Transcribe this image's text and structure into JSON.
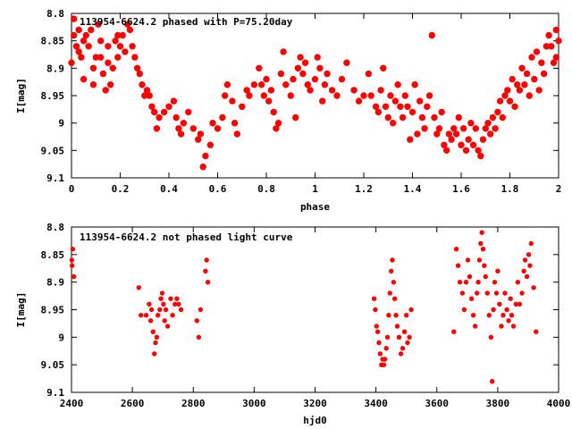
{
  "colors": {
    "points": "#ff0000",
    "axes": "#000000",
    "background": "#ffffff"
  },
  "chart_data": [
    {
      "type": "scatter",
      "title": "113954-6624.2 phased with P=75.20day",
      "xlabel": "phase",
      "ylabel": "I[mag]",
      "xlim": [
        0,
        2
      ],
      "ylim": [
        9.1,
        8.8
      ],
      "y_inverted": true,
      "xticks": [
        "0",
        "0.2",
        "0.4",
        "0.6",
        "0.8",
        "1",
        "1.2",
        "1.4",
        "1.6",
        "1.8",
        "2"
      ],
      "yticks": [
        "8.8",
        "8.85",
        "8.9",
        "8.95",
        "9",
        "9.05",
        "9.1"
      ],
      "marker": "filled-circle-large",
      "points": [
        [
          0.0,
          8.89
        ],
        [
          0.01,
          8.81
        ],
        [
          0.01,
          8.84
        ],
        [
          0.02,
          8.86
        ],
        [
          0.03,
          8.83
        ],
        [
          0.03,
          8.87
        ],
        [
          0.04,
          8.88
        ],
        [
          0.05,
          8.92
        ],
        [
          0.05,
          8.85
        ],
        [
          0.06,
          8.84
        ],
        [
          0.07,
          8.86
        ],
        [
          0.08,
          8.83
        ],
        [
          0.09,
          8.9
        ],
        [
          0.09,
          8.93
        ],
        [
          0.1,
          8.88
        ],
        [
          0.11,
          8.82
        ],
        [
          0.12,
          8.85
        ],
        [
          0.12,
          8.88
        ],
        [
          0.13,
          8.91
        ],
        [
          0.14,
          8.94
        ],
        [
          0.15,
          8.86
        ],
        [
          0.15,
          8.89
        ],
        [
          0.16,
          8.93
        ],
        [
          0.17,
          8.9
        ],
        [
          0.18,
          8.85
        ],
        [
          0.19,
          8.84
        ],
        [
          0.19,
          8.88
        ],
        [
          0.2,
          8.86
        ],
        [
          0.21,
          8.84
        ],
        [
          0.22,
          8.87
        ],
        [
          0.23,
          8.82
        ],
        [
          0.24,
          8.83
        ],
        [
          0.25,
          8.86
        ],
        [
          0.26,
          8.88
        ],
        [
          0.27,
          8.9
        ],
        [
          0.28,
          8.91
        ],
        [
          0.29,
          8.93
        ],
        [
          0.3,
          8.95
        ],
        [
          0.31,
          8.94
        ],
        [
          0.32,
          8.95
        ],
        [
          0.33,
          8.97
        ],
        [
          0.34,
          8.98
        ],
        [
          0.35,
          9.01
        ],
        [
          0.36,
          8.99
        ],
        [
          0.38,
          8.98
        ],
        [
          0.4,
          8.97
        ],
        [
          0.42,
          8.96
        ],
        [
          0.43,
          8.99
        ],
        [
          0.44,
          9.01
        ],
        [
          0.45,
          9.02
        ],
        [
          0.46,
          9.0
        ],
        [
          0.48,
          8.98
        ],
        [
          0.5,
          9.01
        ],
        [
          0.52,
          9.03
        ],
        [
          0.53,
          9.02
        ],
        [
          0.54,
          9.08
        ],
        [
          0.55,
          9.06
        ],
        [
          0.57,
          9.04
        ],
        [
          0.58,
          9.0
        ],
        [
          0.6,
          9.01
        ],
        [
          0.62,
          8.99
        ],
        [
          0.63,
          8.95
        ],
        [
          0.64,
          8.93
        ],
        [
          0.66,
          8.96
        ],
        [
          0.67,
          9.0
        ],
        [
          0.68,
          9.02
        ],
        [
          0.7,
          8.97
        ],
        [
          0.72,
          8.94
        ],
        [
          0.73,
          8.95
        ],
        [
          0.75,
          8.93
        ],
        [
          0.77,
          8.9
        ],
        [
          0.78,
          8.93
        ],
        [
          0.79,
          8.95
        ],
        [
          0.8,
          8.92
        ],
        [
          0.81,
          8.96
        ],
        [
          0.82,
          8.94
        ],
        [
          0.83,
          8.98
        ],
        [
          0.84,
          9.01
        ],
        [
          0.85,
          9.0
        ],
        [
          0.86,
          8.91
        ],
        [
          0.87,
          8.87
        ],
        [
          0.88,
          8.93
        ],
        [
          0.9,
          8.95
        ],
        [
          0.91,
          8.92
        ],
        [
          0.92,
          8.99
        ],
        [
          0.93,
          8.9
        ],
        [
          0.94,
          8.88
        ],
        [
          0.95,
          8.91
        ],
        [
          0.96,
          8.89
        ],
        [
          0.97,
          8.93
        ],
        [
          0.98,
          8.94
        ],
        [
          1.0,
          8.92
        ],
        [
          1.01,
          8.88
        ],
        [
          1.02,
          8.9
        ],
        [
          1.03,
          8.96
        ],
        [
          1.04,
          8.93
        ],
        [
          1.05,
          8.91
        ],
        [
          1.07,
          8.94
        ],
        [
          1.09,
          8.95
        ],
        [
          1.11,
          8.92
        ],
        [
          1.13,
          8.89
        ],
        [
          1.16,
          8.94
        ],
        [
          1.18,
          8.96
        ],
        [
          1.2,
          8.95
        ],
        [
          1.22,
          8.91
        ],
        [
          1.23,
          8.95
        ],
        [
          1.25,
          8.97
        ],
        [
          1.26,
          8.98
        ],
        [
          1.27,
          8.94
        ],
        [
          1.28,
          8.9
        ],
        [
          1.29,
          8.97
        ],
        [
          1.3,
          8.99
        ],
        [
          1.31,
          8.95
        ],
        [
          1.32,
          9.0
        ],
        [
          1.33,
          8.96
        ],
        [
          1.34,
          8.93
        ],
        [
          1.35,
          8.97
        ],
        [
          1.36,
          8.99
        ],
        [
          1.37,
          8.95
        ],
        [
          1.38,
          8.97
        ],
        [
          1.39,
          9.03
        ],
        [
          1.4,
          8.98
        ],
        [
          1.41,
          8.93
        ],
        [
          1.42,
          9.02
        ],
        [
          1.43,
          8.96
        ],
        [
          1.44,
          8.99
        ],
        [
          1.45,
          9.01
        ],
        [
          1.46,
          8.97
        ],
        [
          1.47,
          8.95
        ],
        [
          1.48,
          8.84
        ],
        [
          1.49,
          8.99
        ],
        [
          1.5,
          9.02
        ],
        [
          1.51,
          9.01
        ],
        [
          1.52,
          8.98
        ],
        [
          1.53,
          9.04
        ],
        [
          1.54,
          9.05
        ],
        [
          1.55,
          9.02
        ],
        [
          1.56,
          9.03
        ],
        [
          1.57,
          9.01
        ],
        [
          1.58,
          9.02
        ],
        [
          1.59,
          8.99
        ],
        [
          1.6,
          9.04
        ],
        [
          1.61,
          9.01
        ],
        [
          1.62,
          9.05
        ],
        [
          1.63,
          9.03
        ],
        [
          1.64,
          9.0
        ],
        [
          1.65,
          9.04
        ],
        [
          1.66,
          9.01
        ],
        [
          1.67,
          9.05
        ],
        [
          1.68,
          9.06
        ],
        [
          1.69,
          9.03
        ],
        [
          1.7,
          9.01
        ],
        [
          1.71,
          9.0
        ],
        [
          1.72,
          9.02
        ],
        [
          1.73,
          8.99
        ],
        [
          1.74,
          9.01
        ],
        [
          1.75,
          8.98
        ],
        [
          1.76,
          8.96
        ],
        [
          1.77,
          8.99
        ],
        [
          1.78,
          8.95
        ],
        [
          1.79,
          8.94
        ],
        [
          1.8,
          8.96
        ],
        [
          1.81,
          8.92
        ],
        [
          1.82,
          8.97
        ],
        [
          1.83,
          8.93
        ],
        [
          1.84,
          8.94
        ],
        [
          1.85,
          8.9
        ],
        [
          1.86,
          8.93
        ],
        [
          1.87,
          8.91
        ],
        [
          1.88,
          8.95
        ],
        [
          1.89,
          8.88
        ],
        [
          1.9,
          8.92
        ],
        [
          1.91,
          8.87
        ],
        [
          1.92,
          8.94
        ],
        [
          1.93,
          8.89
        ],
        [
          1.94,
          8.91
        ],
        [
          1.95,
          8.86
        ],
        [
          1.96,
          8.84
        ],
        [
          1.97,
          8.86
        ],
        [
          1.98,
          8.89
        ],
        [
          1.99,
          8.83
        ],
        [
          1.99,
          8.88
        ],
        [
          2.0,
          8.85
        ]
      ]
    },
    {
      "type": "scatter",
      "title": "113954-6624.2 not phased light curve",
      "xlabel": "hjd0",
      "ylabel": "I[mag]",
      "xlim": [
        2400,
        4000
      ],
      "ylim": [
        9.1,
        8.8
      ],
      "y_inverted": true,
      "xticks": [
        "2400",
        "2600",
        "2800",
        "3000",
        "3200",
        "3400",
        "3600",
        "3800",
        "4000"
      ],
      "yticks": [
        "8.8",
        "8.85",
        "8.9",
        "8.95",
        "9",
        "9.05",
        "9.1"
      ],
      "marker": "filled-circle-small",
      "points": [
        [
          2401,
          8.86
        ],
        [
          2402,
          8.87
        ],
        [
          2404,
          8.84
        ],
        [
          2408,
          8.89
        ],
        [
          2621,
          8.91
        ],
        [
          2628,
          8.96
        ],
        [
          2645,
          8.96
        ],
        [
          2655,
          8.94
        ],
        [
          2660,
          8.97
        ],
        [
          2663,
          8.95
        ],
        [
          2668,
          8.99
        ],
        [
          2672,
          9.03
        ],
        [
          2676,
          9.01
        ],
        [
          2680,
          9.0
        ],
        [
          2684,
          8.96
        ],
        [
          2690,
          8.95
        ],
        [
          2694,
          8.93
        ],
        [
          2698,
          8.92
        ],
        [
          2702,
          8.94
        ],
        [
          2706,
          8.97
        ],
        [
          2710,
          8.95
        ],
        [
          2716,
          8.98
        ],
        [
          2726,
          8.93
        ],
        [
          2732,
          8.96
        ],
        [
          2740,
          8.94
        ],
        [
          2746,
          8.93
        ],
        [
          2752,
          8.94
        ],
        [
          2760,
          8.95
        ],
        [
          2812,
          8.97
        ],
        [
          2818,
          9.0
        ],
        [
          2824,
          8.95
        ],
        [
          2840,
          8.88
        ],
        [
          2844,
          8.86
        ],
        [
          2848,
          8.9
        ],
        [
          3394,
          8.93
        ],
        [
          3398,
          8.95
        ],
        [
          3402,
          8.98
        ],
        [
          3406,
          8.99
        ],
        [
          3410,
          9.01
        ],
        [
          3414,
          9.03
        ],
        [
          3418,
          9.05
        ],
        [
          3422,
          9.04
        ],
        [
          3426,
          9.05
        ],
        [
          3430,
          9.04
        ],
        [
          3434,
          9.02
        ],
        [
          3438,
          9.0
        ],
        [
          3442,
          8.96
        ],
        [
          3446,
          8.92
        ],
        [
          3450,
          8.88
        ],
        [
          3454,
          8.86
        ],
        [
          3458,
          8.9
        ],
        [
          3462,
          8.93
        ],
        [
          3466,
          8.96
        ],
        [
          3470,
          8.98
        ],
        [
          3476,
          9.0
        ],
        [
          3482,
          9.03
        ],
        [
          3488,
          9.02
        ],
        [
          3494,
          8.99
        ],
        [
          3500,
          8.96
        ],
        [
          3504,
          9.01
        ],
        [
          3510,
          9.0
        ],
        [
          3516,
          8.95
        ],
        [
          3656,
          8.99
        ],
        [
          3664,
          8.84
        ],
        [
          3670,
          8.87
        ],
        [
          3676,
          8.9
        ],
        [
          3684,
          8.92
        ],
        [
          3690,
          8.95
        ],
        [
          3696,
          8.9
        ],
        [
          3702,
          8.86
        ],
        [
          3708,
          8.89
        ],
        [
          3714,
          8.93
        ],
        [
          3720,
          8.96
        ],
        [
          3726,
          8.98
        ],
        [
          3732,
          8.92
        ],
        [
          3736,
          8.9
        ],
        [
          3740,
          8.86
        ],
        [
          3744,
          8.83
        ],
        [
          3748,
          8.81
        ],
        [
          3752,
          8.84
        ],
        [
          3756,
          8.87
        ],
        [
          3760,
          8.89
        ],
        [
          3766,
          8.92
        ],
        [
          3772,
          8.96
        ],
        [
          3778,
          9.0
        ],
        [
          3782,
          9.08
        ],
        [
          3786,
          8.95
        ],
        [
          3790,
          8.9
        ],
        [
          3796,
          8.92
        ],
        [
          3800,
          8.88
        ],
        [
          3806,
          8.94
        ],
        [
          3812,
          8.98
        ],
        [
          3818,
          8.96
        ],
        [
          3824,
          8.92
        ],
        [
          3830,
          8.95
        ],
        [
          3836,
          8.97
        ],
        [
          3842,
          8.93
        ],
        [
          3846,
          8.96
        ],
        [
          3852,
          8.98
        ],
        [
          3860,
          8.94
        ],
        [
          3866,
          8.9
        ],
        [
          3872,
          8.94
        ],
        [
          3880,
          8.92
        ],
        [
          3886,
          8.88
        ],
        [
          3890,
          8.86
        ],
        [
          3896,
          8.89
        ],
        [
          3902,
          8.85
        ],
        [
          3906,
          8.87
        ],
        [
          3910,
          8.83
        ],
        [
          3918,
          8.91
        ],
        [
          3926,
          8.99
        ]
      ]
    }
  ]
}
